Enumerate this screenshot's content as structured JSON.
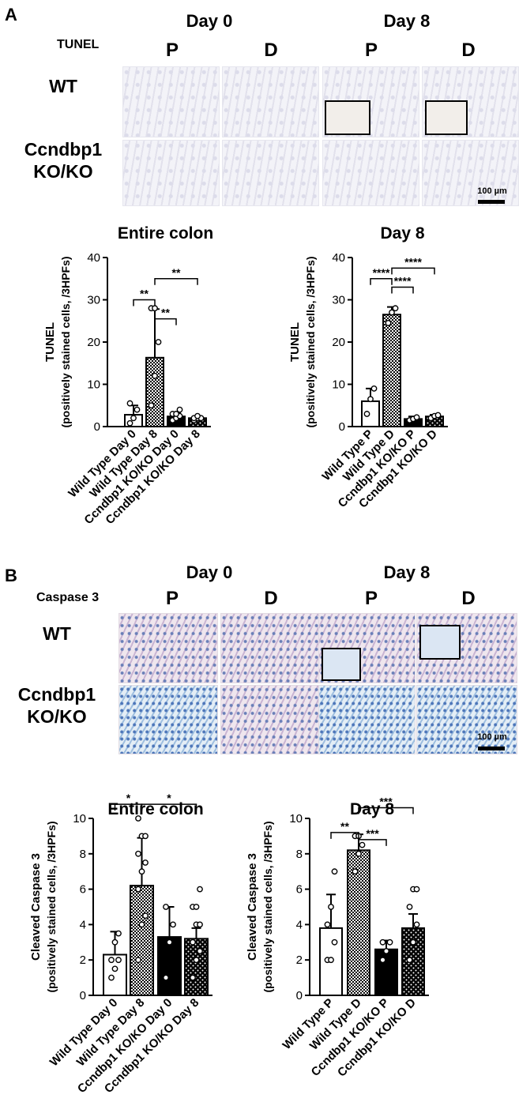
{
  "panel_a": {
    "letter": "A",
    "stain": "TUNEL",
    "day_headers": [
      "Day 0",
      "Day 8"
    ],
    "col_headers": [
      "P",
      "D",
      "P",
      "D"
    ],
    "row_labels": [
      "WT",
      "Ccndbp1",
      "KO/KO"
    ],
    "scale": "100 µm"
  },
  "panel_b": {
    "letter": "B",
    "stain": "Caspase 3",
    "day_headers": [
      "Day 0",
      "Day 8"
    ],
    "col_headers": [
      "P",
      "D",
      "P",
      "D"
    ],
    "row_labels": [
      "WT",
      "Ccndbp1",
      "KO/KO"
    ],
    "scale": "100 µm"
  },
  "chart_data": [
    {
      "type": "bar",
      "title": "Entire colon",
      "ylabel": [
        "TUNEL",
        "(positively stained cells, /3HPFs)"
      ],
      "ylim": [
        0,
        40
      ],
      "yticks": [
        0,
        10,
        20,
        30,
        40
      ],
      "categories": [
        "Wild Type Day 0",
        "Wild Type Day 8",
        "Ccndbp1 KO/KO Day 0",
        "Ccndbp1 KO/KO Day 8"
      ],
      "values": [
        2.8,
        16.3,
        2.4,
        2.0
      ],
      "errors": [
        2.2,
        11.5,
        0.9,
        0.5
      ],
      "fills": [
        "white",
        "check",
        "black",
        "dots"
      ],
      "points": [
        [
          0.8,
          2.0,
          4.0,
          5.5
        ],
        [
          5.0,
          12.0,
          20.0,
          28.0,
          28.0
        ],
        [
          1.5,
          2.0,
          2.5,
          3.0,
          3.0,
          4.0
        ],
        [
          1.5,
          2.0,
          2.0,
          2.0,
          2.5
        ]
      ],
      "significance": [
        {
          "from": 0,
          "to": 1,
          "level": 30,
          "label": "**"
        },
        {
          "from": 1,
          "to": 2,
          "level": 25.5,
          "label": "**"
        },
        {
          "from": 1,
          "to": 3,
          "level": 35,
          "label": "**"
        }
      ]
    },
    {
      "type": "bar",
      "title": "Day 8",
      "ylabel": [
        "TUNEL",
        "(positively stained cells, /3HPFs)"
      ],
      "ylim": [
        0,
        40
      ],
      "yticks": [
        0,
        10,
        20,
        30,
        40
      ],
      "categories": [
        "Wild Type P",
        "Wild Type D",
        "Ccndbp1 KO/KO P",
        "Ccndbp1 KO/KO D"
      ],
      "values": [
        6.0,
        26.5,
        1.8,
        2.4
      ],
      "errors": [
        3.0,
        1.8,
        0.6,
        0.4
      ],
      "fills": [
        "white",
        "check",
        "black",
        "dots"
      ],
      "points": [
        [
          3.0,
          6.5,
          9.0
        ],
        [
          24.5,
          27.0,
          28.0
        ],
        [
          1.5,
          1.8,
          2.2
        ],
        [
          2.0,
          2.5,
          2.7
        ]
      ],
      "significance": [
        {
          "from": 0,
          "to": 1,
          "level": 35,
          "label": "****"
        },
        {
          "from": 1,
          "to": 2,
          "level": 33,
          "label": "****"
        },
        {
          "from": 1,
          "to": 3,
          "level": 37.5,
          "label": "****"
        }
      ]
    },
    {
      "type": "bar",
      "title": "Entire colon",
      "ylabel": [
        "Cleaved Caspase 3",
        "(positively stained cells, /3HPFs)"
      ],
      "ylim": [
        0,
        10
      ],
      "yticks": [
        0,
        2,
        4,
        6,
        8,
        10
      ],
      "categories": [
        "Wild Type Day 0",
        "Wild Type Day 8",
        "Ccndbp1 KO/KO Day 0",
        "Ccndbp1 KO/KO Day 8"
      ],
      "values": [
        2.3,
        6.2,
        3.3,
        3.2
      ],
      "errors": [
        1.3,
        2.7,
        1.7,
        0.6
      ],
      "fills": [
        "white",
        "check",
        "black",
        "dots"
      ],
      "points": [
        [
          1.0,
          1.5,
          2.0,
          2.0,
          3.0,
          3.5
        ],
        [
          2.0,
          4.0,
          4.5,
          6.0,
          7.0,
          7.5,
          8.0,
          9.0,
          9.0,
          10.0
        ],
        [
          1.0,
          3.0,
          4.0,
          5.0
        ],
        [
          1.0,
          2.0,
          2.5,
          3.0,
          4.0,
          4.0,
          5.0,
          5.0,
          6.0
        ]
      ],
      "significance": [
        {
          "from": 0,
          "to": 1,
          "level": 10.8,
          "label": "*"
        },
        {
          "from": 1,
          "to": 3,
          "level": 10.8,
          "label": "*"
        }
      ]
    },
    {
      "type": "bar",
      "title": "Day 8",
      "ylabel": [
        "Cleaved Caspase 3",
        "(positively stained cells, /3HPFs)"
      ],
      "ylim": [
        0,
        10
      ],
      "yticks": [
        0,
        2,
        4,
        6,
        8,
        10
      ],
      "categories": [
        "Wild Type P",
        "Wild Type D",
        "Ccndbp1 KO/KO P",
        "Ccndbp1 KO/KO D"
      ],
      "values": [
        3.8,
        8.2,
        2.6,
        3.8
      ],
      "errors": [
        1.9,
        0.9,
        0.5,
        0.8
      ],
      "fills": [
        "white",
        "check",
        "black",
        "dots"
      ],
      "points": [
        [
          2.0,
          2.0,
          3.0,
          4.0,
          5.0,
          7.0
        ],
        [
          7.0,
          8.0,
          8.5,
          9.0,
          9.0
        ],
        [
          2.0,
          2.5,
          3.0,
          3.0
        ],
        [
          2.0,
          3.0,
          4.0,
          5.0,
          6.0,
          6.0
        ]
      ],
      "significance": [
        {
          "from": 0,
          "to": 1,
          "level": 9.2,
          "label": "**"
        },
        {
          "from": 1,
          "to": 2,
          "level": 8.8,
          "label": "***"
        },
        {
          "from": 1,
          "to": 3,
          "level": 10.6,
          "label": "***"
        }
      ]
    }
  ]
}
